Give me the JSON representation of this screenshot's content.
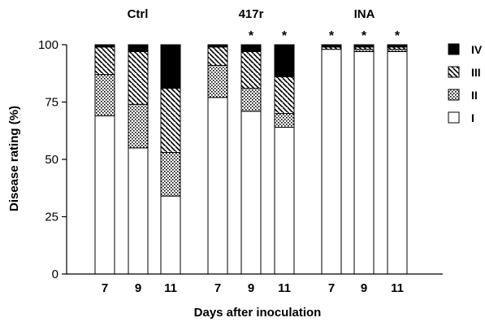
{
  "chart_data": {
    "type": "bar",
    "stacked": true,
    "ylabel": "Disease rating (%)",
    "xlabel": "Days after inoculation",
    "ylim": [
      0,
      100
    ],
    "yticks": [
      "0",
      "25",
      "50",
      "75",
      "100"
    ],
    "groups": [
      {
        "label": "Ctrl",
        "categories": [
          "7",
          "9",
          "11"
        ]
      },
      {
        "label": "417r",
        "categories": [
          "7",
          "9",
          "11"
        ]
      },
      {
        "label": "INA",
        "categories": [
          "7",
          "9",
          "11"
        ]
      }
    ],
    "series": [
      {
        "name": "I",
        "pattern": "white",
        "values": [
          69,
          55,
          34,
          77,
          71,
          64,
          98,
          97,
          97
        ]
      },
      {
        "name": "II",
        "pattern": "dotted",
        "values": [
          18,
          19,
          19,
          14,
          10,
          6,
          0,
          1,
          1
        ]
      },
      {
        "name": "III",
        "pattern": "hatch",
        "values": [
          12,
          23,
          28,
          8,
          16,
          16,
          1,
          1,
          1
        ]
      },
      {
        "name": "IV",
        "pattern": "black",
        "values": [
          1,
          3,
          19,
          1,
          3,
          14,
          1,
          1,
          1
        ]
      }
    ],
    "significance": [
      "",
      "",
      "",
      "",
      "*",
      "*",
      "*",
      "*",
      "*"
    ],
    "legend": {
      "placement": "right",
      "order": [
        "IV",
        "III",
        "II",
        "I"
      ]
    },
    "colors": {
      "bar_stroke": "#000000",
      "dark": "#000000",
      "light": "#ffffff"
    }
  }
}
